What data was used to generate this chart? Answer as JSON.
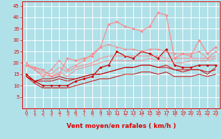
{
  "xlabel": "Vent moyen/en rafales ( km/h )",
  "bg_color": "#b0e0e8",
  "grid_color": "#ffffff",
  "x": [
    0,
    1,
    2,
    3,
    4,
    5,
    6,
    7,
    8,
    9,
    10,
    11,
    12,
    13,
    14,
    15,
    16,
    17,
    18,
    19,
    20,
    21,
    22,
    23
  ],
  "lines": [
    {
      "color": "#cc0000",
      "lw": 0.9,
      "marker": "D",
      "ms": 1.8,
      "data": [
        15,
        12,
        10,
        10,
        10,
        10,
        12,
        13,
        14,
        18,
        19,
        25,
        23,
        22,
        25,
        24,
        22,
        26,
        19,
        18,
        18,
        19,
        19,
        19
      ]
    },
    {
      "color": "#cc0000",
      "lw": 0.7,
      "marker": null,
      "ms": 0,
      "data": [
        14,
        12,
        13,
        13,
        14,
        13,
        13,
        14,
        15,
        15,
        16,
        17,
        18,
        18,
        19,
        19,
        18,
        19,
        17,
        17,
        17,
        17,
        16,
        17
      ]
    },
    {
      "color": "#cc0000",
      "lw": 0.7,
      "marker": null,
      "ms": 0,
      "data": [
        14,
        12,
        12,
        12,
        13,
        12,
        13,
        14,
        15,
        15,
        16,
        17,
        18,
        18,
        19,
        19,
        18,
        18,
        17,
        16,
        17,
        17,
        15,
        18
      ]
    },
    {
      "color": "#cc0000",
      "lw": 0.7,
      "marker": null,
      "ms": 0,
      "data": [
        14,
        11,
        9,
        9,
        9,
        9,
        10,
        11,
        12,
        13,
        13,
        14,
        15,
        15,
        16,
        16,
        15,
        16,
        14,
        14,
        14,
        15,
        14,
        15
      ]
    },
    {
      "color": "#ff8888",
      "lw": 0.9,
      "marker": "D",
      "ms": 1.8,
      "data": [
        19,
        18,
        17,
        14,
        15,
        22,
        21,
        22,
        23,
        27,
        37,
        38,
        36,
        35,
        34,
        36,
        42,
        41,
        22,
        24,
        23,
        30,
        24,
        27
      ]
    },
    {
      "color": "#ff8888",
      "lw": 0.7,
      "marker": "D",
      "ms": 1.5,
      "data": [
        20,
        17,
        14,
        17,
        21,
        17,
        19,
        21,
        24,
        27,
        28,
        27,
        26,
        26,
        25,
        26,
        26,
        25,
        24,
        24,
        24,
        25,
        22,
        25
      ]
    },
    {
      "color": "#ff8888",
      "lw": 0.7,
      "marker": null,
      "ms": 0,
      "data": [
        19,
        18,
        16,
        15,
        18,
        16,
        18,
        19,
        20,
        22,
        23,
        23,
        23,
        23,
        23,
        23,
        23,
        22,
        22,
        22,
        22,
        22,
        22,
        23
      ]
    },
    {
      "color": "#ff8888",
      "lw": 0.7,
      "marker": null,
      "ms": 0,
      "data": [
        19,
        17,
        15,
        14,
        16,
        14,
        17,
        18,
        19,
        20,
        21,
        21,
        21,
        21,
        21,
        22,
        21,
        21,
        20,
        20,
        21,
        21,
        21,
        22
      ]
    }
  ],
  "ylim": [
    0,
    47
  ],
  "yticks": [
    5,
    10,
    15,
    20,
    25,
    30,
    35,
    40,
    45
  ],
  "xticks": [
    0,
    1,
    2,
    3,
    4,
    5,
    6,
    7,
    8,
    9,
    10,
    11,
    12,
    13,
    14,
    15,
    16,
    17,
    18,
    19,
    20,
    21,
    22,
    23
  ],
  "tick_label_fontsize": 5.0,
  "xlabel_fontsize": 6.5,
  "tick_color": "#dd0000",
  "axis_color": "#dd0000",
  "arrow_color": "#ff8888"
}
